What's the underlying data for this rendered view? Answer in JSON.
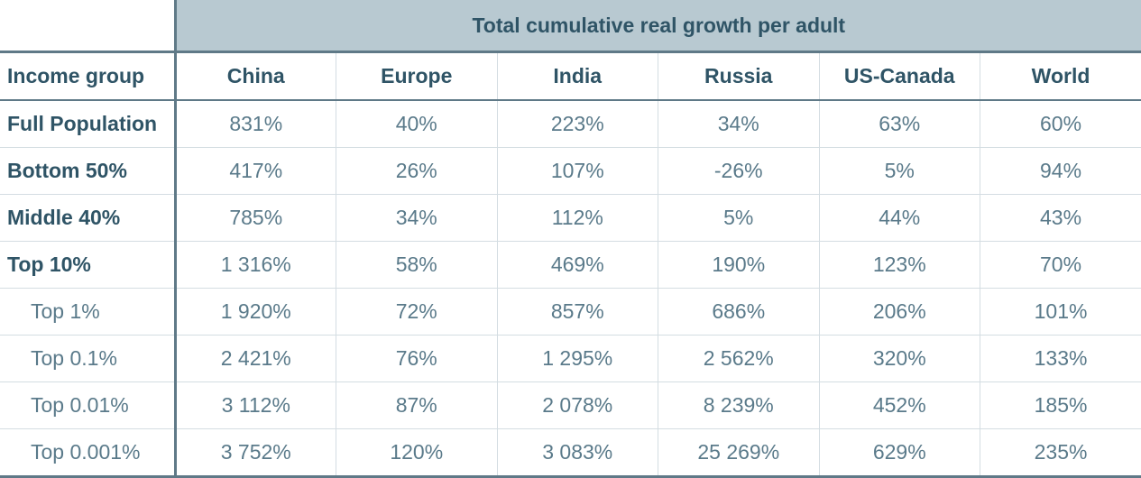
{
  "table": {
    "group_header": "Total cumulative real growth per adult",
    "row_header_label": "Income group",
    "columns": [
      "China",
      "Europe",
      "India",
      "Russia",
      "US-Canada",
      "World"
    ],
    "rows": [
      {
        "label": "Full Population",
        "style": "bold",
        "values": [
          "831%",
          "40%",
          "223%",
          "34%",
          "63%",
          "60%"
        ]
      },
      {
        "label": "Bottom 50%",
        "style": "bold",
        "values": [
          "417%",
          "26%",
          "107%",
          "-26%",
          "5%",
          "94%"
        ]
      },
      {
        "label": "Middle 40%",
        "style": "bold",
        "values": [
          "785%",
          "34%",
          "112%",
          "5%",
          "44%",
          "43%"
        ]
      },
      {
        "label": "Top 10%",
        "style": "bold",
        "values": [
          "1 316%",
          "58%",
          "469%",
          "190%",
          "123%",
          "70%"
        ]
      },
      {
        "label": "Top 1%",
        "style": "sub",
        "values": [
          "1 920%",
          "72%",
          "857%",
          "686%",
          "206%",
          "101%"
        ]
      },
      {
        "label": "Top 0.1%",
        "style": "sub",
        "values": [
          "2 421%",
          "76%",
          "1 295%",
          "2 562%",
          "320%",
          "133%"
        ]
      },
      {
        "label": "Top 0.01%",
        "style": "sub",
        "values": [
          "3 112%",
          "87%",
          "2 078%",
          "8 239%",
          "452%",
          "185%"
        ]
      },
      {
        "label": "Top 0.001%",
        "style": "sub",
        "values": [
          "3 752%",
          "120%",
          "3 083%",
          "25 269%",
          "629%",
          "235%"
        ]
      }
    ]
  }
}
